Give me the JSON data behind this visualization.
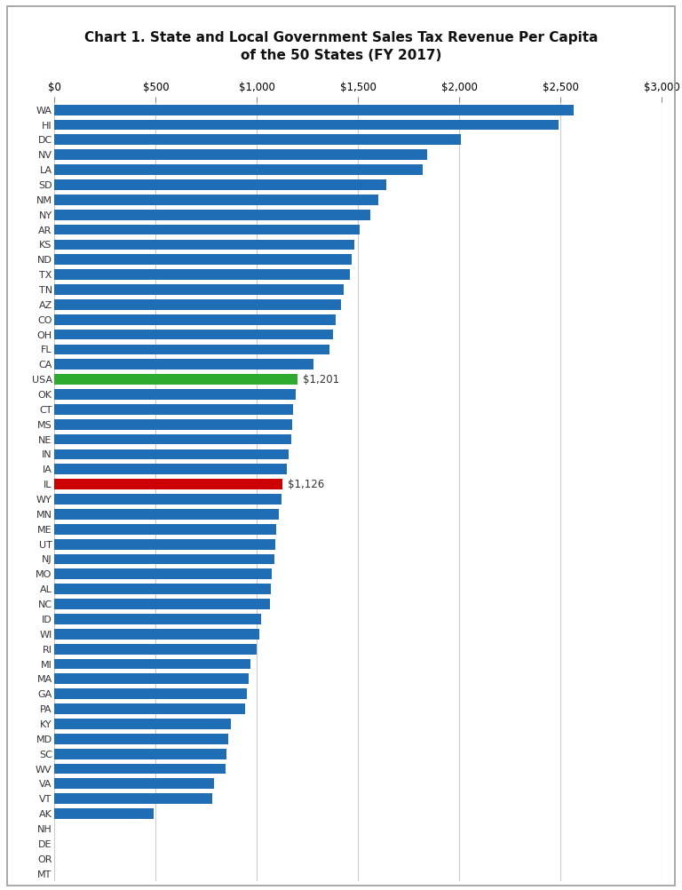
{
  "title": "Chart 1. State and Local Government Sales Tax Revenue Per Capita\nof the 50 States (FY 2017)",
  "states": [
    "WA",
    "HI",
    "DC",
    "NV",
    "LA",
    "SD",
    "NM",
    "NY",
    "AR",
    "KS",
    "ND",
    "TX",
    "TN",
    "AZ",
    "CO",
    "OH",
    "FL",
    "CA",
    "USA",
    "OK",
    "CT",
    "MS",
    "NE",
    "IN",
    "IA",
    "IL",
    "WY",
    "MN",
    "ME",
    "UT",
    "NJ",
    "MO",
    "AL",
    "NC",
    "ID",
    "WI",
    "RI",
    "MI",
    "MA",
    "GA",
    "PA",
    "KY",
    "MD",
    "SC",
    "WV",
    "VA",
    "VT",
    "AK",
    "NH",
    "DE",
    "OR",
    "MT"
  ],
  "values": [
    2565,
    2490,
    2010,
    1840,
    1820,
    1640,
    1600,
    1560,
    1510,
    1480,
    1470,
    1460,
    1430,
    1415,
    1390,
    1375,
    1360,
    1280,
    1201,
    1190,
    1180,
    1175,
    1170,
    1155,
    1150,
    1126,
    1120,
    1110,
    1095,
    1090,
    1085,
    1075,
    1070,
    1065,
    1020,
    1010,
    1000,
    970,
    960,
    950,
    940,
    870,
    860,
    850,
    845,
    790,
    780,
    490,
    0,
    0,
    0,
    0
  ],
  "colors": [
    "#1f6eb5",
    "#1f6eb5",
    "#1f6eb5",
    "#1f6eb5",
    "#1f6eb5",
    "#1f6eb5",
    "#1f6eb5",
    "#1f6eb5",
    "#1f6eb5",
    "#1f6eb5",
    "#1f6eb5",
    "#1f6eb5",
    "#1f6eb5",
    "#1f6eb5",
    "#1f6eb5",
    "#1f6eb5",
    "#1f6eb5",
    "#1f6eb5",
    "#2eaa2e",
    "#1f6eb5",
    "#1f6eb5",
    "#1f6eb5",
    "#1f6eb5",
    "#1f6eb5",
    "#1f6eb5",
    "#cc0000",
    "#1f6eb5",
    "#1f6eb5",
    "#1f6eb5",
    "#1f6eb5",
    "#1f6eb5",
    "#1f6eb5",
    "#1f6eb5",
    "#1f6eb5",
    "#1f6eb5",
    "#1f6eb5",
    "#1f6eb5",
    "#1f6eb5",
    "#1f6eb5",
    "#1f6eb5",
    "#1f6eb5",
    "#1f6eb5",
    "#1f6eb5",
    "#1f6eb5",
    "#1f6eb5",
    "#1f6eb5",
    "#1f6eb5",
    "#1f6eb5",
    "#1f6eb5",
    "#1f6eb5",
    "#1f6eb5",
    "#1f6eb5"
  ],
  "annotations": [
    {
      "state": "USA",
      "text": "$1,201"
    },
    {
      "state": "IL",
      "text": "$1,126"
    }
  ],
  "xlim": [
    0,
    3000
  ],
  "xticks": [
    0,
    500,
    1000,
    1500,
    2000,
    2500,
    3000
  ],
  "background_color": "#ffffff",
  "bar_height": 0.7
}
